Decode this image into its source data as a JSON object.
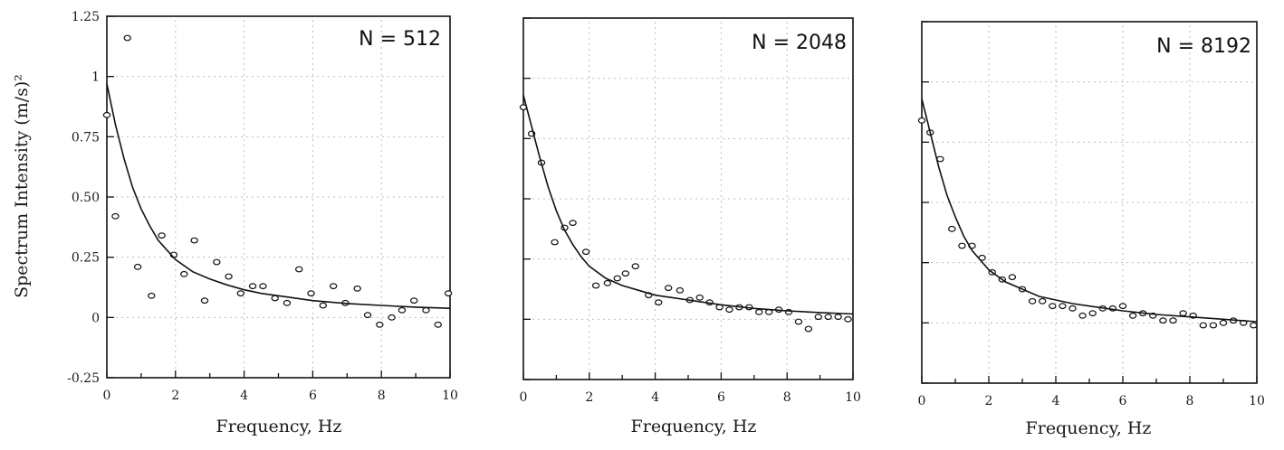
{
  "chart_data": [
    {
      "type": "scatter",
      "annotation": "N = 512",
      "ylabel": "Spectrum Intensity (m/s)²",
      "xlabel": "Frequency, Hz",
      "xlim": [
        0,
        10
      ],
      "ylim": [
        -0.25,
        1.25
      ],
      "xticks": [
        "0",
        "2",
        "4",
        "6",
        "8",
        "10"
      ],
      "yticks": [
        "-0.25",
        "0",
        "0.25",
        "0.50",
        "0.75",
        "1",
        "1.25"
      ],
      "grid": "dotted",
      "series": [
        {
          "style": "circles",
          "x": [
            0.0,
            0.25,
            0.6,
            0.9,
            1.3,
            1.6,
            1.95,
            2.25,
            2.55,
            2.85,
            3.2,
            3.55,
            3.9,
            4.25,
            4.55,
            4.9,
            5.25,
            5.6,
            5.95,
            6.3,
            6.6,
            6.95,
            7.3,
            7.6,
            7.95,
            8.3,
            8.6,
            8.95,
            9.3,
            9.65,
            9.95
          ],
          "y": [
            0.84,
            0.42,
            1.16,
            0.21,
            0.09,
            0.34,
            0.26,
            0.18,
            0.32,
            0.07,
            0.23,
            0.17,
            0.1,
            0.13,
            0.13,
            0.08,
            0.06,
            0.2,
            0.1,
            0.05,
            0.13,
            0.06,
            0.12,
            0.01,
            -0.03,
            0.0,
            0.03,
            0.07,
            0.03,
            -0.03,
            0.1
          ]
        },
        {
          "style": "line",
          "x": [
            0,
            0.25,
            0.5,
            0.75,
            1,
            1.25,
            1.5,
            1.75,
            2,
            2.5,
            3,
            3.5,
            4,
            4.5,
            5,
            6,
            7,
            8,
            9,
            10
          ],
          "y": [
            0.97,
            0.8,
            0.66,
            0.54,
            0.45,
            0.38,
            0.32,
            0.28,
            0.24,
            0.19,
            0.16,
            0.135,
            0.115,
            0.1,
            0.09,
            0.07,
            0.058,
            0.05,
            0.043,
            0.038
          ]
        }
      ]
    },
    {
      "type": "scatter",
      "annotation": "N = 2048",
      "xlabel": "Frequency, Hz",
      "xlim": [
        0,
        10
      ],
      "ylim": [
        -0.25,
        1.25
      ],
      "xticks": [
        "0",
        "2",
        "4",
        "6",
        "8",
        "10"
      ],
      "grid": "dotted",
      "series": [
        {
          "style": "circles",
          "x": [
            0.0,
            0.25,
            0.55,
            0.95,
            1.25,
            1.5,
            1.9,
            2.2,
            2.55,
            2.85,
            3.1,
            3.4,
            3.8,
            4.1,
            4.4,
            4.75,
            5.05,
            5.35,
            5.65,
            5.95,
            6.25,
            6.55,
            6.85,
            7.15,
            7.45,
            7.75,
            8.05,
            8.35,
            8.65,
            8.95,
            9.25,
            9.55,
            9.85
          ],
          "y": [
            0.88,
            0.77,
            0.65,
            0.32,
            0.38,
            0.4,
            0.28,
            0.14,
            0.15,
            0.17,
            0.19,
            0.22,
            0.1,
            0.07,
            0.13,
            0.12,
            0.08,
            0.09,
            0.07,
            0.05,
            0.04,
            0.05,
            0.05,
            0.03,
            0.03,
            0.04,
            0.03,
            -0.01,
            -0.04,
            0.01,
            0.01,
            0.01,
            0.0
          ]
        },
        {
          "style": "line",
          "x": [
            0,
            0.25,
            0.5,
            0.75,
            1,
            1.25,
            1.5,
            1.75,
            2,
            2.5,
            3,
            3.5,
            4,
            4.5,
            5,
            6,
            7,
            8,
            9,
            10
          ],
          "y": [
            0.93,
            0.8,
            0.67,
            0.55,
            0.45,
            0.37,
            0.31,
            0.26,
            0.22,
            0.17,
            0.14,
            0.12,
            0.1,
            0.09,
            0.08,
            0.06,
            0.045,
            0.035,
            0.028,
            0.022
          ]
        }
      ]
    },
    {
      "type": "scatter",
      "annotation": "N = 8192",
      "xlabel": "Frequency, Hz",
      "xlim": [
        0,
        10
      ],
      "ylim": [
        -0.25,
        1.25
      ],
      "xticks": [
        "0",
        "2",
        "4",
        "6",
        "8",
        "10"
      ],
      "grid": "dotted",
      "series": [
        {
          "style": "circles",
          "x": [
            0.0,
            0.25,
            0.55,
            0.9,
            1.2,
            1.5,
            1.8,
            2.1,
            2.4,
            2.7,
            3.0,
            3.3,
            3.6,
            3.9,
            4.2,
            4.5,
            4.8,
            5.1,
            5.4,
            5.7,
            6.0,
            6.3,
            6.6,
            6.9,
            7.2,
            7.5,
            7.8,
            8.1,
            8.4,
            8.7,
            9.0,
            9.3,
            9.6,
            9.9
          ],
          "y": [
            0.84,
            0.79,
            0.68,
            0.39,
            0.32,
            0.32,
            0.27,
            0.21,
            0.18,
            0.19,
            0.14,
            0.09,
            0.09,
            0.07,
            0.07,
            0.06,
            0.03,
            0.04,
            0.06,
            0.06,
            0.07,
            0.03,
            0.04,
            0.03,
            0.01,
            0.01,
            0.04,
            0.03,
            -0.01,
            -0.01,
            0.0,
            0.01,
            0.0,
            -0.01
          ]
        },
        {
          "style": "line",
          "x": [
            0,
            0.25,
            0.5,
            0.75,
            1,
            1.25,
            1.5,
            1.75,
            2,
            2.5,
            3,
            3.5,
            4,
            4.5,
            5,
            6,
            7,
            8,
            9,
            10
          ],
          "y": [
            0.93,
            0.79,
            0.65,
            0.53,
            0.44,
            0.36,
            0.3,
            0.26,
            0.22,
            0.17,
            0.14,
            0.11,
            0.095,
            0.08,
            0.07,
            0.05,
            0.035,
            0.025,
            0.015,
            0.005
          ]
        }
      ]
    }
  ]
}
